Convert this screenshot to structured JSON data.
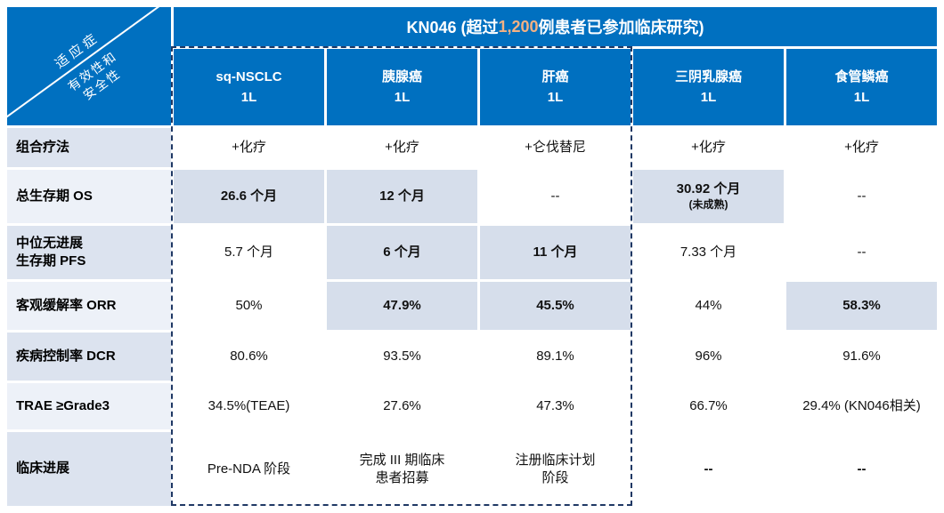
{
  "banner": {
    "prefix": "KN046 (超过 ",
    "highlight": "1,200",
    "suffix": " 例患者已参加临床研究)"
  },
  "corner": {
    "top": "适应症",
    "bottom1": "有效性和",
    "bottom2": "安全性"
  },
  "columns": [
    {
      "name": "sq-NSCLC",
      "phase": "1L"
    },
    {
      "name": "胰腺癌",
      "phase": "1L"
    },
    {
      "name": "肝癌",
      "phase": "1L"
    },
    {
      "name": "三阴乳腺癌",
      "phase": "1L"
    },
    {
      "name": "食管鳞癌",
      "phase": "1L"
    }
  ],
  "rows": [
    {
      "label": "组合疗法",
      "cells": [
        {
          "text": "+化疗",
          "bold": false,
          "highlight": false
        },
        {
          "text": "+化疗",
          "bold": false,
          "highlight": false
        },
        {
          "text": "+仑伐替尼",
          "bold": false,
          "highlight": false
        },
        {
          "text": "+化疗",
          "bold": false,
          "highlight": false
        },
        {
          "text": "+化疗",
          "bold": false,
          "highlight": false
        }
      ]
    },
    {
      "label": "总生存期 OS",
      "cells": [
        {
          "text": "26.6 个月",
          "bold": true,
          "highlight": true
        },
        {
          "text": "12 个月",
          "bold": true,
          "highlight": true
        },
        {
          "text": "--",
          "bold": false,
          "highlight": false
        },
        {
          "text": "30.92 个月",
          "sub": "(未成熟)",
          "bold": true,
          "highlight": true
        },
        {
          "text": "--",
          "bold": false,
          "highlight": false
        }
      ]
    },
    {
      "label": "中位无进展\n生存期 PFS",
      "cells": [
        {
          "text": "5.7 个月",
          "bold": false,
          "highlight": false
        },
        {
          "text": "6 个月",
          "bold": true,
          "highlight": true
        },
        {
          "text": "11 个月",
          "bold": true,
          "highlight": true
        },
        {
          "text": "7.33 个月",
          "bold": false,
          "highlight": false
        },
        {
          "text": "--",
          "bold": false,
          "highlight": false
        }
      ]
    },
    {
      "label": "客观缓解率 ORR",
      "cells": [
        {
          "text": "50%",
          "bold": false,
          "highlight": false
        },
        {
          "text": "47.9%",
          "bold": true,
          "highlight": true
        },
        {
          "text": "45.5%",
          "bold": true,
          "highlight": true
        },
        {
          "text": "44%",
          "bold": false,
          "highlight": false
        },
        {
          "text": "58.3%",
          "bold": true,
          "highlight": true
        }
      ]
    },
    {
      "label": "疾病控制率 DCR",
      "cells": [
        {
          "text": "80.6%",
          "bold": false,
          "highlight": false
        },
        {
          "text": "93.5%",
          "bold": false,
          "highlight": false
        },
        {
          "text": "89.1%",
          "bold": false,
          "highlight": false
        },
        {
          "text": "96%",
          "bold": false,
          "highlight": false
        },
        {
          "text": "91.6%",
          "bold": false,
          "highlight": false
        }
      ]
    },
    {
      "label": "TRAE ≥Grade3",
      "cells": [
        {
          "text": "34.5%(TEAE)",
          "bold": false,
          "highlight": false
        },
        {
          "text": "27.6%",
          "bold": false,
          "highlight": false
        },
        {
          "text": "47.3%",
          "bold": false,
          "highlight": false
        },
        {
          "text": "66.7%",
          "bold": false,
          "highlight": false
        },
        {
          "text": "29.4% (KN046相关)",
          "bold": false,
          "highlight": false
        }
      ]
    },
    {
      "label": "临床进展",
      "cells": [
        {
          "text": "Pre-NDA 阶段",
          "bold": false,
          "highlight": false
        },
        {
          "text": "完成 III 期临床\n患者招募",
          "bold": false,
          "highlight": false
        },
        {
          "text": "注册临床计划\n阶段",
          "bold": false,
          "highlight": false
        },
        {
          "text": "--",
          "bold": true,
          "highlight": false
        },
        {
          "text": "--",
          "bold": true,
          "highlight": false
        }
      ]
    }
  ],
  "colors": {
    "header_blue": "#0070C0",
    "highlight_orange": "#F4B183",
    "cell_highlight": "#D6DEEB",
    "dashed_border": "#1F3864"
  }
}
